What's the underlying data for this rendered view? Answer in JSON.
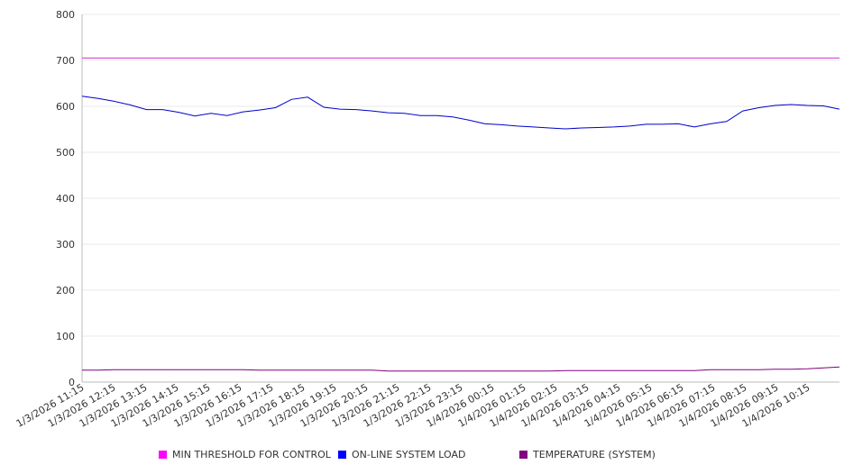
{
  "chart_data": {
    "type": "line",
    "title": "",
    "xlabel": "",
    "ylabel": "",
    "ylim": [
      0,
      800
    ],
    "yticks": [
      0,
      100,
      200,
      300,
      400,
      500,
      600,
      700,
      800
    ],
    "grid": true,
    "legend_position": "bottom",
    "x_labels": [
      "1/3/2026 11:15",
      "1/3/2026 12:15",
      "1/3/2026 13:15",
      "1/3/2026 14:15",
      "1/3/2026 15:15",
      "1/3/2026 16:15",
      "1/3/2026 17:15",
      "1/3/2026 18:15",
      "1/3/2026 19:15",
      "1/3/2026 20:15",
      "1/3/2026 21:15",
      "1/3/2026 22:15",
      "1/3/2026 23:15",
      "1/4/2026 00:15",
      "1/4/2026 01:15",
      "1/4/2026 02:15",
      "1/4/2026 03:15",
      "1/4/2026 04:15",
      "1/4/2026 05:15",
      "1/4/2026 06:15",
      "1/4/2026 07:15",
      "1/4/2026 08:15",
      "1/4/2026 09:15",
      "1/4/2026 10:15"
    ],
    "x_points": [
      "1/3/2026 11:15",
      "1/3/2026 11:45",
      "1/3/2026 12:15",
      "1/3/2026 12:45",
      "1/3/2026 13:15",
      "1/3/2026 13:45",
      "1/3/2026 14:15",
      "1/3/2026 14:45",
      "1/3/2026 15:15",
      "1/3/2026 15:45",
      "1/3/2026 16:15",
      "1/3/2026 16:45",
      "1/3/2026 17:15",
      "1/3/2026 17:45",
      "1/3/2026 18:15",
      "1/3/2026 18:45",
      "1/3/2026 19:15",
      "1/3/2026 19:45",
      "1/3/2026 20:15",
      "1/3/2026 20:45",
      "1/3/2026 21:15",
      "1/3/2026 21:45",
      "1/3/2026 22:15",
      "1/3/2026 22:45",
      "1/3/2026 23:15",
      "1/3/2026 23:45",
      "1/4/2026 00:15",
      "1/4/2026 00:45",
      "1/4/2026 01:15",
      "1/4/2026 01:45",
      "1/4/2026 02:15",
      "1/4/2026 02:45",
      "1/4/2026 03:15",
      "1/4/2026 03:45",
      "1/4/2026 04:15",
      "1/4/2026 04:45",
      "1/4/2026 05:15",
      "1/4/2026 05:45",
      "1/4/2026 06:15",
      "1/4/2026 06:45",
      "1/4/2026 07:15",
      "1/4/2026 07:45",
      "1/4/2026 08:15",
      "1/4/2026 08:45",
      "1/4/2026 09:15",
      "1/4/2026 09:45",
      "1/4/2026 10:15",
      "1/4/2026 10:45"
    ],
    "series": [
      {
        "name": "MIN THRESHOLD FOR CONTROL",
        "color": "#cc33cc",
        "swatch_color": "#ff00ff",
        "values": [
          705,
          705,
          705,
          705,
          705,
          705,
          705,
          705,
          705,
          705,
          705,
          705,
          705,
          705,
          705,
          705,
          705,
          705,
          705,
          705,
          705,
          705,
          705,
          705,
          705,
          705,
          705,
          705,
          705,
          705,
          705,
          705,
          705,
          705,
          705,
          705,
          705,
          705,
          705,
          705,
          705,
          705,
          705,
          705,
          705,
          705,
          705,
          705
        ]
      },
      {
        "name": "ON-LINE SYSTEM LOAD",
        "color": "#0000cc",
        "swatch_color": "#0000ff",
        "values": [
          622,
          617,
          611,
          603,
          593,
          593,
          587,
          579,
          585,
          580,
          588,
          592,
          597,
          615,
          620,
          598,
          594,
          593,
          590,
          586,
          585,
          580,
          580,
          577,
          570,
          562,
          560,
          557,
          555,
          553,
          551,
          553,
          554,
          555,
          557,
          561,
          561,
          562,
          555,
          562,
          567,
          590,
          597,
          602,
          604,
          602,
          601,
          594
        ]
      },
      {
        "name": "TEMPERATURE (SYSTEM)",
        "color": "#800080",
        "swatch_color": "#800080",
        "values": [
          26,
          26,
          27,
          27,
          27,
          27,
          27,
          27,
          27,
          27,
          27,
          26,
          26,
          26,
          26,
          26,
          26,
          26,
          26,
          24,
          24,
          24,
          24,
          24,
          24,
          24,
          24,
          24,
          24,
          24,
          25,
          25,
          25,
          25,
          25,
          25,
          25,
          25,
          25,
          27,
          27,
          27,
          27,
          28,
          28,
          29,
          31,
          33
        ]
      }
    ]
  }
}
